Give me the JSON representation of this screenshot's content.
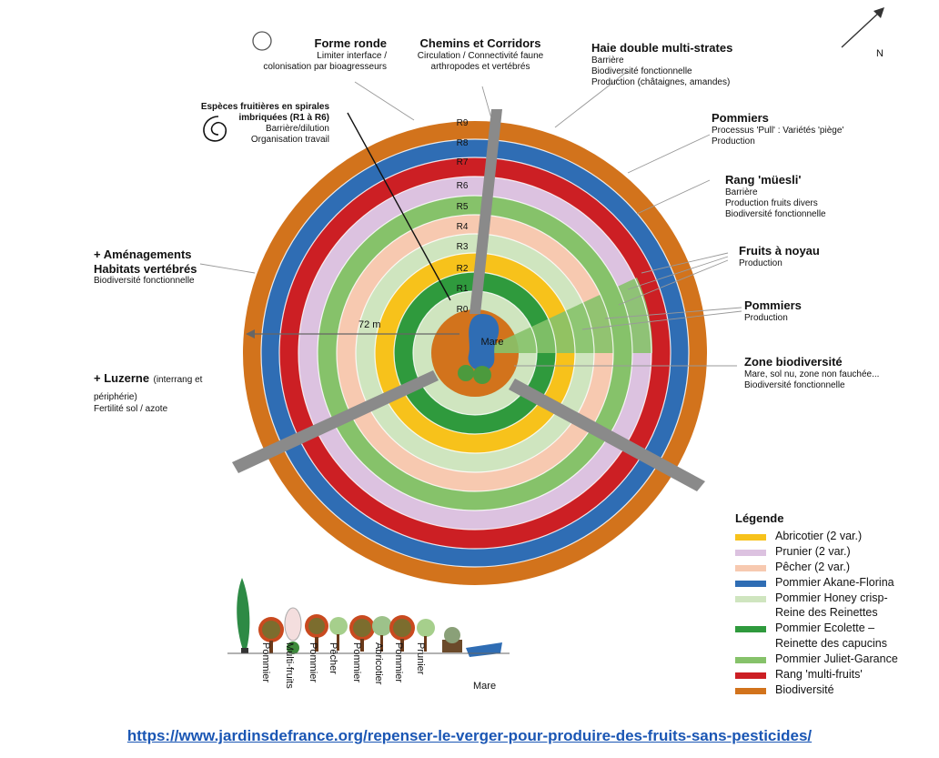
{
  "north_label": "N",
  "distance_label": "72 m",
  "center_label": "Mare",
  "ring_labels": [
    "R0",
    "R1",
    "R2",
    "R3",
    "R4",
    "R5",
    "R6",
    "R7",
    "R8",
    "R9"
  ],
  "annotations": {
    "forme_ronde": {
      "title": "Forme ronde",
      "sub": [
        "Limiter interface /",
        "colonisation par bioagresseurs"
      ]
    },
    "chemins": {
      "title": "Chemins et Corridors",
      "sub": [
        "Circulation / Connectivité faune",
        "arthropodes et vertébrés"
      ]
    },
    "haie": {
      "title": "Haie double multi-strates",
      "sub": [
        "Barrière",
        "Biodiversité fonctionnelle",
        "Production (châtaignes, amandes)"
      ]
    },
    "especes": {
      "title": "Espèces fruitières en spirales imbriquées (R1 à R6)",
      "sub": [
        "Barrière/dilution",
        "Organisation travail"
      ]
    },
    "pommiers_pull": {
      "title": "Pommiers",
      "sub": [
        "Processus 'Pull' : Variétés 'piège'",
        "Production"
      ]
    },
    "muesli": {
      "title": "Rang 'müesli'",
      "sub": [
        "Barrière",
        "Production fruits divers",
        "Biodiversité fonctionnelle"
      ]
    },
    "amenagements": {
      "title": "+ Aménagements Habitats vertébrés",
      "sub": [
        "Biodiversité fonctionnelle"
      ]
    },
    "fruits_noyau": {
      "title": "Fruits à noyau",
      "sub": [
        "Production"
      ]
    },
    "pommiers_prod": {
      "title": "Pommiers",
      "sub": [
        "Production"
      ]
    },
    "zone_bio": {
      "title": "Zone biodiversité",
      "sub": [
        "Mare, sol nu, zone non fauchée...",
        "Biodiversité fonctionnelle"
      ]
    },
    "luzerne": {
      "title": "+ Luzerne",
      "title_suffix": "(interrang et périphérie)",
      "sub": [
        "Fertilité sol / azote"
      ]
    }
  },
  "legend": {
    "title": "Légende",
    "items": [
      {
        "label": "Abricotier (2 var.)",
        "color": "#f7c21b"
      },
      {
        "label": "Prunier (2 var.)",
        "color": "#dcc2e0"
      },
      {
        "label": "Pêcher (2 var.)",
        "color": "#f7c9b0"
      },
      {
        "label": "Pommier Akane-Florina",
        "color": "#2f6db4"
      },
      {
        "label": "Pommier Honey crisp-\nReine des Reinettes",
        "color": "#cfe5bf"
      },
      {
        "label": "Pommier Ecolette –\nReinette des capucins",
        "color": "#2f9a3d"
      },
      {
        "label": "Pommier Juliet-Garance",
        "color": "#86c26a"
      },
      {
        "label": "Rang 'multi-fruits'",
        "color": "#cc1f24"
      },
      {
        "label": "Biodiversité",
        "color": "#d2731c"
      }
    ]
  },
  "tree_labels": [
    "Pommier",
    "Multi-fruits",
    "Pommier",
    "Pêcher",
    "Pommier",
    "Abricotier",
    "Pommier",
    "Prunier",
    "Mare"
  ],
  "source_url": "https://www.jardinsdefrance.org/repenser-le-verger-pour-produire-des-fruits-sans-pesticides/"
}
